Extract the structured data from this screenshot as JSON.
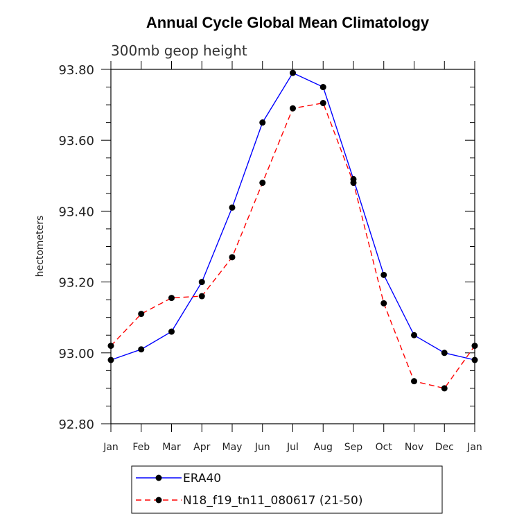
{
  "chart_data": {
    "type": "line",
    "title": "Annual Cycle Global Mean Climatology",
    "subtitle": "300mb geop height",
    "xlabel": "",
    "ylabel": "hectometers",
    "categories": [
      "Jan",
      "Feb",
      "Mar",
      "Apr",
      "May",
      "Jun",
      "Jul",
      "Aug",
      "Sep",
      "Oct",
      "Nov",
      "Dec",
      "Jan"
    ],
    "ylim": [
      92.8,
      93.8
    ],
    "yticks": [
      "92.80",
      "93.00",
      "93.20",
      "93.40",
      "93.60",
      "93.80"
    ],
    "ytick_values": [
      92.8,
      93.0,
      93.2,
      93.4,
      93.6,
      93.8
    ],
    "grid": false,
    "legend_position": "bottom",
    "series": [
      {
        "name": "ERA40",
        "color": "#0000ff",
        "style": "solid",
        "marker": "circle",
        "values": [
          92.98,
          93.01,
          93.06,
          93.2,
          93.41,
          93.65,
          93.79,
          93.75,
          93.49,
          93.22,
          93.05,
          93.0,
          92.98
        ]
      },
      {
        "name": "N18_f19_tn11_080617 (21-50)",
        "color": "#ff0000",
        "style": "dashed",
        "marker": "circle",
        "values": [
          93.02,
          93.11,
          93.155,
          93.16,
          93.27,
          93.48,
          93.69,
          93.705,
          93.48,
          93.14,
          92.92,
          92.9,
          93.02
        ]
      }
    ]
  }
}
